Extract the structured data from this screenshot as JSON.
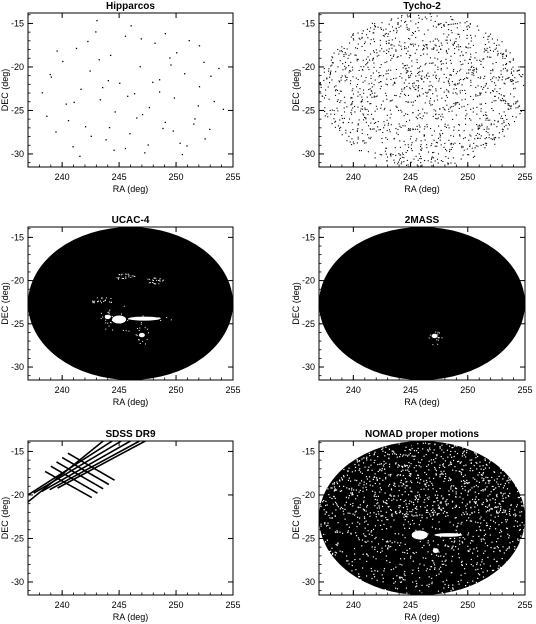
{
  "chart_data": [
    {
      "type": "scatter",
      "title": "Hipparcos",
      "xlabel": "RA (deg)",
      "ylabel": "DEC (deg)",
      "xlim": [
        237,
        255
      ],
      "ylim": [
        -31.5,
        -13.8
      ],
      "x_ticks": [
        240,
        245,
        250,
        255
      ],
      "y_ticks": [
        -15,
        -20,
        -25,
        -30
      ],
      "footprint": "ellipse",
      "density": "sparse",
      "series": [
        {
          "x": [
            238.2,
            238.6,
            239.0,
            239.4,
            240.0,
            240.3,
            240.9,
            241.2,
            241.6,
            242.0,
            242.4,
            242.9,
            243.3,
            243.8,
            244.2,
            244.6,
            245.0,
            245.5,
            245.9,
            246.3,
            246.8,
            247.2,
            247.6,
            248.1,
            248.5,
            249.0,
            249.4,
            249.8,
            250.3,
            250.7,
            251.1,
            251.6,
            252.0,
            252.4,
            252.9,
            253.3,
            253.7,
            254.1,
            241.5,
            243.0,
            244.5,
            246.0,
            247.5,
            249.0,
            250.5,
            252.0,
            239.5,
            241.0,
            242.5,
            244.0,
            245.5,
            247.0,
            248.5,
            250.0,
            251.5,
            253.0,
            240.5,
            243.5,
            246.5,
            249.5,
            252.5,
            238.9,
            242.2,
            245.7,
            248.8,
            251.9,
            244.1,
            247.9,
            250.9,
            243.2,
            246.9,
            249.7
          ],
          "y": [
            -22.9,
            -25.6,
            -21.1,
            -27.4,
            -19.3,
            -24.2,
            -29.1,
            -17.8,
            -22.5,
            -26.8,
            -20.4,
            -15.9,
            -23.7,
            -28.3,
            -18.6,
            -25.1,
            -21.8,
            -16.4,
            -27.6,
            -23.0,
            -19.9,
            -29.8,
            -24.6,
            -17.2,
            -21.4,
            -26.3,
            -18.9,
            -23.5,
            -28.7,
            -20.7,
            -16.9,
            -25.9,
            -22.2,
            -19.4,
            -27.1,
            -23.9,
            -20.1,
            -24.8,
            -30.2,
            -14.6,
            -29.5,
            -15.2,
            -28.9,
            -16.1,
            -30.0,
            -17.5,
            -18.1,
            -24.0,
            -27.9,
            -21.5,
            -29.3,
            -25.4,
            -22.8,
            -18.3,
            -26.5,
            -21.0,
            -26.1,
            -22.3,
            -25.8,
            -19.7,
            -28.2,
            -20.8,
            -17.0,
            -23.3,
            -27.0,
            -24.4,
            -26.9,
            -21.7,
            -29.0,
            -19.1,
            -16.7,
            -27.3
          ]
        }
      ]
    },
    {
      "type": "scatter",
      "title": "Tycho-2",
      "xlabel": "RA (deg)",
      "ylabel": "DEC (deg)",
      "xlim": [
        237,
        255
      ],
      "ylim": [
        -31.5,
        -13.8
      ],
      "x_ticks": [
        240,
        245,
        250,
        255
      ],
      "y_ticks": [
        -15,
        -20,
        -25,
        -30
      ],
      "footprint": "ellipse",
      "density": "medium"
    },
    {
      "type": "scatter",
      "title": "UCAC-4",
      "xlabel": "RA (deg)",
      "ylabel": "DEC (deg)",
      "xlim": [
        237,
        255
      ],
      "ylim": [
        -31.5,
        -13.8
      ],
      "x_ticks": [
        240,
        245,
        250,
        255
      ],
      "y_ticks": [
        -15,
        -20,
        -25,
        -30
      ],
      "footprint": "ellipse",
      "density": "saturated",
      "voids": [
        {
          "ra": 245.0,
          "dec": -24.5,
          "size": "medium"
        },
        {
          "ra": 247.2,
          "dec": -24.4,
          "size": "streak"
        },
        {
          "ra": 244.0,
          "dec": -24.2,
          "size": "small"
        },
        {
          "ra": 247.0,
          "dec": -26.3,
          "size": "small"
        },
        {
          "ra": 245.5,
          "dec": -19.5,
          "size": "dust"
        },
        {
          "ra": 248.0,
          "dec": -20.0,
          "size": "dust"
        },
        {
          "ra": 243.5,
          "dec": -22.2,
          "size": "dust"
        }
      ]
    },
    {
      "type": "scatter",
      "title": "2MASS",
      "xlabel": "RA (deg)",
      "ylabel": "DEC (deg)",
      "xlim": [
        237,
        255
      ],
      "ylim": [
        -31.5,
        -13.8
      ],
      "x_ticks": [
        240,
        245,
        250,
        255
      ],
      "y_ticks": [
        -15,
        -20,
        -25,
        -30
      ],
      "footprint": "ellipse",
      "density": "saturated",
      "voids": [
        {
          "ra": 247.1,
          "dec": -26.4,
          "size": "small"
        }
      ]
    },
    {
      "type": "scatter",
      "title": "SDSS DR9",
      "xlabel": "RA (deg)",
      "ylabel": "DEC (deg)",
      "xlim": [
        237,
        255
      ],
      "ylim": [
        -31.5,
        -13.8
      ],
      "x_ticks": [
        240,
        245,
        250,
        255
      ],
      "y_ticks": [
        -15,
        -20,
        -25,
        -30
      ],
      "footprint": "stripes",
      "stripes": [
        {
          "x1": 237.0,
          "y1": -20.8,
          "x2": 243.6,
          "y2": -13.8
        },
        {
          "x1": 237.0,
          "y1": -20.0,
          "x2": 244.4,
          "y2": -13.8
        },
        {
          "x1": 237.5,
          "y1": -19.8,
          "x2": 245.2,
          "y2": -13.8
        },
        {
          "x1": 238.2,
          "y1": -19.6,
          "x2": 246.0,
          "y2": -13.8
        },
        {
          "x1": 238.9,
          "y1": -19.4,
          "x2": 246.8,
          "y2": -13.8
        },
        {
          "x1": 239.6,
          "y1": -19.2,
          "x2": 247.3,
          "y2": -13.8
        },
        {
          "x1": 238.5,
          "y1": -17.3,
          "x2": 242.6,
          "y2": -20.3
        },
        {
          "x1": 239.0,
          "y1": -16.7,
          "x2": 243.1,
          "y2": -19.8
        },
        {
          "x1": 239.5,
          "y1": -16.2,
          "x2": 243.6,
          "y2": -19.3
        },
        {
          "x1": 240.0,
          "y1": -15.7,
          "x2": 244.1,
          "y2": -18.8
        },
        {
          "x1": 240.5,
          "y1": -15.2,
          "x2": 244.6,
          "y2": -18.3
        }
      ]
    },
    {
      "type": "scatter",
      "title": "NOMAD proper motions",
      "xlabel": "RA (deg)",
      "ylabel": "DEC (deg)",
      "xlim": [
        237,
        255
      ],
      "ylim": [
        -31.5,
        -13.8
      ],
      "x_ticks": [
        240,
        245,
        250,
        255
      ],
      "y_ticks": [
        -15,
        -20,
        -25,
        -30
      ],
      "footprint": "ellipse",
      "density": "dense-speckled",
      "voids": [
        {
          "ra": 245.8,
          "dec": -24.6,
          "size": "medium"
        },
        {
          "ra": 248.3,
          "dec": -24.6,
          "size": "streak"
        },
        {
          "ra": 247.2,
          "dec": -26.4,
          "size": "small"
        }
      ]
    }
  ],
  "colors": {
    "points": "#000000",
    "background": "#ffffff",
    "axes": "#000000"
  }
}
